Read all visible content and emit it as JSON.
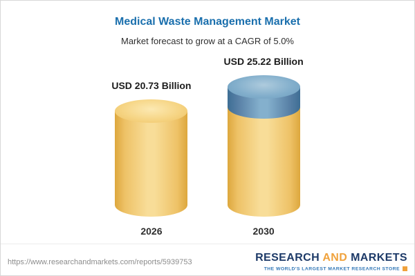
{
  "header": {
    "title": "Medical Waste Management Market",
    "subtitle": "Market forecast to grow at a CAGR of 5.0%"
  },
  "chart_data": {
    "type": "bar",
    "title": "Medical Waste Management Market",
    "subtitle": "Market forecast to grow at a CAGR of 5.0%",
    "categories": [
      "2026",
      "2030"
    ],
    "values": [
      20.73,
      25.22
    ],
    "unit": "USD Billion",
    "cagr_pct": 5.0,
    "value_labels": [
      "USD 20.73 Billion",
      "USD 25.22 Billion"
    ],
    "legend_position": "none",
    "grid": false,
    "colors": {
      "bar_body": "#f3cc6a",
      "growth_cap": "#5d8fb3",
      "title": "#1a6fad"
    }
  },
  "bars": [
    {
      "year": "2026",
      "label": "USD 20.73 Billion"
    },
    {
      "year": "2030",
      "label": "USD 25.22 Billion"
    }
  ],
  "footer": {
    "url": "https://www.researchandmarkets.com/reports/5939753",
    "logo": {
      "research": "RESEARCH",
      "and": "AND",
      "markets": "MARKETS",
      "tagline": "THE WORLD'S LARGEST MARKET RESEARCH STORE"
    }
  }
}
